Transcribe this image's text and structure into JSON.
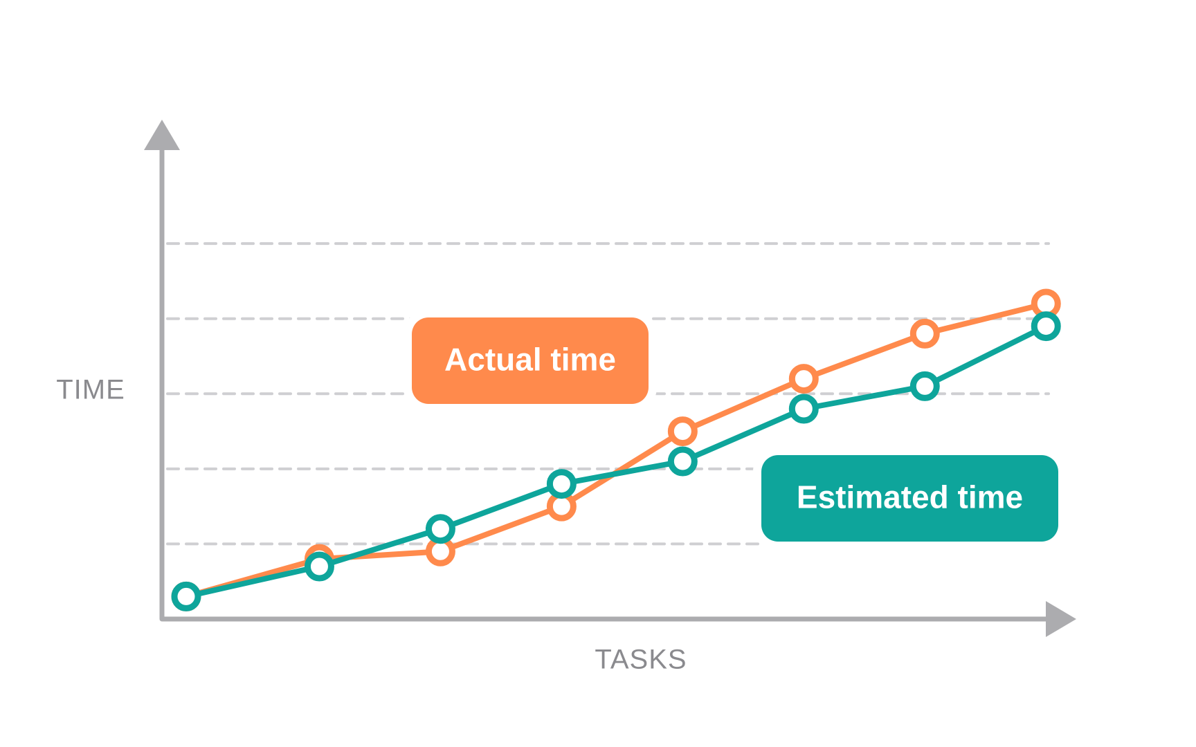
{
  "chart_data": {
    "type": "line",
    "x_label": "TASKS",
    "y_label": "TIME",
    "x": [
      0.2,
      1.3,
      2.3,
      3.3,
      4.3,
      5.3,
      6.3,
      7.3
    ],
    "xlim": [
      0,
      7.55
    ],
    "ylim": [
      0,
      6.65
    ],
    "yticks": [
      1,
      2,
      3,
      4,
      5
    ],
    "show_tick_labels": false,
    "grid": true,
    "series": [
      {
        "name": "Actual time",
        "color": "#ff8a4c",
        "values": [
          0.3,
          0.8,
          0.9,
          1.5,
          2.5,
          3.2,
          3.8,
          4.2
        ]
      },
      {
        "name": "Estimated time",
        "color": "#0ea59b",
        "values": [
          0.3,
          0.7,
          1.2,
          1.8,
          2.1,
          2.8,
          3.1,
          3.9
        ]
      }
    ]
  }
}
